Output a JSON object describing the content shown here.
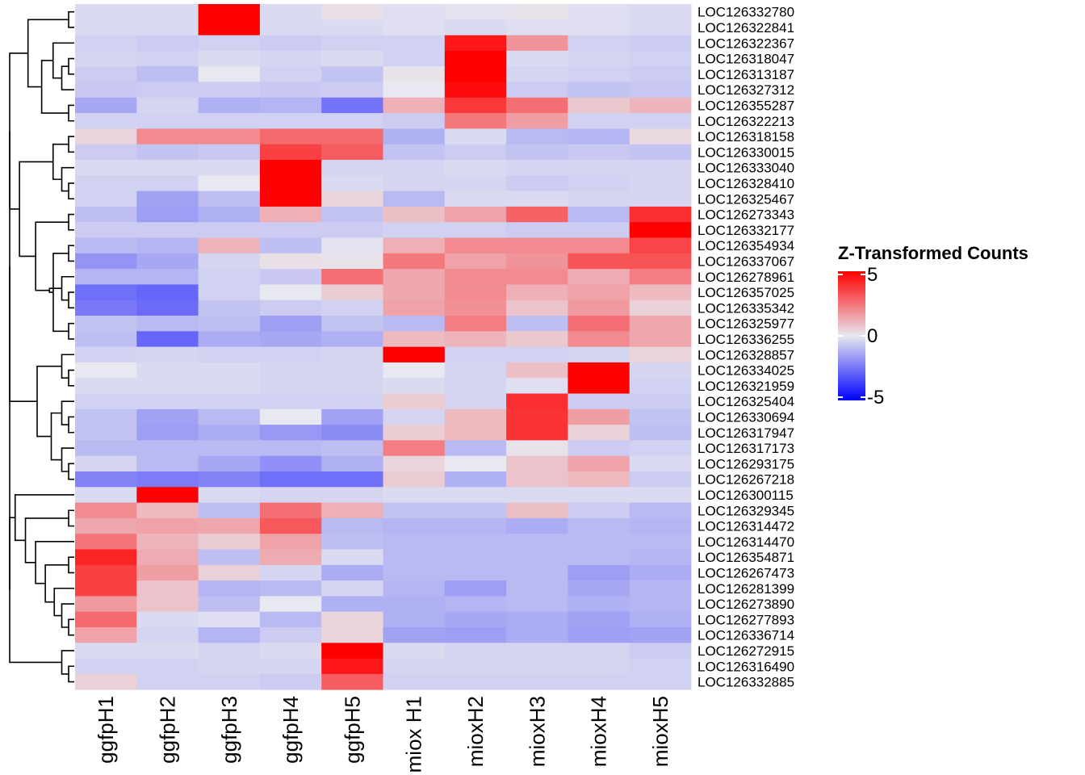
{
  "chart_data": {
    "type": "heatmap",
    "title": "",
    "legend": {
      "title": "Z-Transformed Counts",
      "ticks": [
        "5",
        "0",
        "-5"
      ],
      "tick_values": [
        5,
        0,
        -5
      ],
      "range": [
        -5,
        5
      ],
      "low_color": "#0000ff",
      "mid_color": "#e8e8f0",
      "high_color": "#ff0000",
      "placement": "right"
    },
    "columns": [
      "ggfpH1",
      "ggfpH2",
      "ggfpH3",
      "ggfpH4",
      "ggfpH5",
      "miox H1",
      "mioxH2",
      "mioxH3",
      "mioxH4",
      "mioxH5"
    ],
    "rows": [
      "LOC126332780",
      "LOC126322841",
      "LOC126322367",
      "LOC126318047",
      "LOC126313187",
      "LOC126327312",
      "LOC126355287",
      "LOC126322213",
      "LOC126318158",
      "LOC126330015",
      "LOC126333040",
      "LOC126328410",
      "LOC126325467",
      "LOC126273343",
      "LOC126332177",
      "LOC126354934",
      "LOC126337067",
      "LOC126278961",
      "LOC126357025",
      "LOC126335342",
      "LOC126325977",
      "LOC126336255",
      "LOC126328857",
      "LOC126334025",
      "LOC126321959",
      "LOC126325404",
      "LOC126330694",
      "LOC126317947",
      "LOC126317173",
      "LOC126293175",
      "LOC126267218",
      "LOC126300115",
      "LOC126329345",
      "LOC126314472",
      "LOC126314470",
      "LOC126354871",
      "LOC126267473",
      "LOC126281399",
      "LOC126273890",
      "LOC126277893",
      "LOC126336714",
      "LOC126272915",
      "LOC126316490",
      "LOC126332885"
    ],
    "values": [
      [
        -0.3,
        -0.3,
        5,
        -0.3,
        0.2,
        -0.2,
        -0.1,
        0.1,
        -0.2,
        -0.3
      ],
      [
        -0.3,
        -0.3,
        5,
        -0.3,
        -0.3,
        -0.2,
        -0.3,
        -0.2,
        -0.2,
        -0.3
      ],
      [
        -0.5,
        -0.6,
        -0.5,
        -0.6,
        -0.5,
        -0.5,
        4.5,
        1.8,
        -0.5,
        -0.6
      ],
      [
        -0.4,
        -0.5,
        -0.3,
        -0.4,
        -0.3,
        -0.5,
        5,
        -0.3,
        -0.4,
        -0.5
      ],
      [
        -0.6,
        -0.9,
        0,
        -0.5,
        -0.8,
        0.1,
        5,
        -0.4,
        -0.5,
        -0.6
      ],
      [
        -0.7,
        -0.6,
        -0.6,
        -0.7,
        -0.6,
        0,
        4.8,
        -0.6,
        -0.8,
        -0.7
      ],
      [
        -1.4,
        -0.4,
        -1.2,
        -1.1,
        -2.5,
        1.2,
        3.8,
        2.6,
        0.7,
        1.1
      ],
      [
        -0.5,
        -0.5,
        -0.5,
        -0.5,
        -0.5,
        -0.6,
        2.4,
        1.6,
        -0.5,
        -0.5
      ],
      [
        0.4,
        2.0,
        2.0,
        2.7,
        2.7,
        -1.2,
        -0.3,
        -1.0,
        -1.1,
        0.3
      ],
      [
        -0.6,
        -0.8,
        -0.7,
        3.6,
        3.0,
        -0.8,
        -0.6,
        -0.8,
        -0.7,
        -0.8
      ],
      [
        -0.3,
        -0.3,
        -0.3,
        5,
        -0.4,
        -0.4,
        -0.3,
        -0.4,
        -0.4,
        -0.4
      ],
      [
        -0.5,
        -0.5,
        0,
        5,
        -0.3,
        -0.4,
        -0.4,
        -0.6,
        -0.5,
        -0.4
      ],
      [
        -0.5,
        -1.5,
        -0.9,
        5,
        0.4,
        -1.0,
        -0.3,
        -0.3,
        -0.4,
        -0.4
      ],
      [
        -0.9,
        -1.6,
        -1.2,
        1.2,
        -0.8,
        0.9,
        1.5,
        2.9,
        -1.0,
        4.0
      ],
      [
        -0.6,
        -0.6,
        -0.6,
        -0.6,
        -0.6,
        -0.5,
        -0.5,
        -0.6,
        -0.6,
        5
      ],
      [
        -1.0,
        -1.1,
        1.1,
        -0.9,
        -0.1,
        1.2,
        2.0,
        2.0,
        2.0,
        3.5
      ],
      [
        -1.8,
        -1.4,
        -0.4,
        0.2,
        0.1,
        2.4,
        1.5,
        1.8,
        3.2,
        3.2
      ],
      [
        -1.1,
        -1.1,
        -0.5,
        -0.7,
        2.6,
        1.4,
        2.0,
        2.0,
        1.3,
        2.3
      ],
      [
        -2.6,
        -2.8,
        -0.5,
        0,
        0.6,
        1.4,
        2.0,
        1.2,
        1.5,
        1.0
      ],
      [
        -2.4,
        -2.7,
        -0.8,
        -0.6,
        -0.5,
        1.5,
        1.9,
        0.8,
        1.7,
        0.5
      ],
      [
        -0.8,
        -1.0,
        -0.9,
        -1.6,
        -0.8,
        -1.0,
        2.3,
        -0.9,
        2.6,
        1.4
      ],
      [
        -0.9,
        -2.8,
        -1.3,
        -1.4,
        -1.2,
        1.0,
        1.1,
        0.7,
        2.0,
        1.4
      ],
      [
        -0.5,
        -0.4,
        -0.5,
        -0.5,
        -0.4,
        5,
        -0.5,
        -0.5,
        -0.4,
        0.4
      ],
      [
        0,
        -0.3,
        -0.3,
        -0.4,
        -0.4,
        0,
        -0.4,
        0.9,
        5,
        -0.4
      ],
      [
        -0.3,
        -0.3,
        -0.3,
        -0.4,
        -0.4,
        -0.3,
        -0.4,
        -0.2,
        5,
        -0.5
      ],
      [
        -0.5,
        -0.5,
        -0.5,
        -0.5,
        -0.5,
        0.6,
        -0.4,
        4.0,
        -0.6,
        -0.6
      ],
      [
        -0.8,
        -1.5,
        -1.0,
        0,
        -1.5,
        -0.4,
        1.0,
        3.9,
        1.6,
        -0.8
      ],
      [
        -0.8,
        -1.6,
        -1.3,
        -1.7,
        -2.0,
        0.6,
        1.0,
        3.9,
        0.5,
        -0.9
      ],
      [
        -1.0,
        -1.0,
        -1.0,
        -1.0,
        -0.9,
        2.3,
        -1.0,
        0.1,
        -0.6,
        -0.5
      ],
      [
        -0.4,
        -1.0,
        -1.4,
        -1.9,
        -1.2,
        0.4,
        0,
        0.8,
        1.5,
        -0.3
      ],
      [
        -2.2,
        -2.3,
        -2.2,
        -2.6,
        -2.6,
        0.6,
        -1.2,
        0.8,
        1.0,
        -0.6
      ],
      [
        -0.3,
        5,
        -0.3,
        -0.4,
        -0.4,
        -0.3,
        -0.3,
        -0.3,
        -0.3,
        -0.3
      ],
      [
        2.0,
        1.0,
        -0.9,
        2.6,
        1.2,
        -0.8,
        -0.8,
        0.9,
        -0.6,
        -1.0
      ],
      [
        1.4,
        1.5,
        1.4,
        3.1,
        -1.0,
        -1.1,
        -1.1,
        -1.3,
        -1.0,
        -1.1
      ],
      [
        2.5,
        1.1,
        0.6,
        1.5,
        -0.9,
        -1.0,
        -1.0,
        -1.0,
        -1.0,
        -1.0
      ],
      [
        4.2,
        1.3,
        -0.9,
        1.3,
        -0.3,
        -1.0,
        -1.0,
        -1.0,
        -1.0,
        -1.1
      ],
      [
        3.6,
        1.6,
        0.5,
        -0.4,
        -1.3,
        -1.0,
        -1.0,
        -1.0,
        -1.6,
        -1.3
      ],
      [
        3.6,
        0.8,
        -1.1,
        -1.0,
        -0.4,
        -1.1,
        -1.6,
        -1.0,
        -1.4,
        -1.1
      ],
      [
        1.7,
        0.8,
        -0.9,
        0,
        -1.2,
        -1.2,
        -1.1,
        -1.0,
        -1.2,
        -1.1
      ],
      [
        2.7,
        -0.3,
        -0.2,
        -1.0,
        0.4,
        -1.2,
        -1.4,
        -1.3,
        -1.5,
        -1.2
      ],
      [
        1.5,
        -0.4,
        -1.1,
        -0.6,
        0.4,
        -1.5,
        -1.6,
        -1.3,
        -1.6,
        -1.5
      ],
      [
        -0.3,
        -0.3,
        -0.4,
        -0.3,
        5,
        -0.3,
        -0.4,
        -0.4,
        -0.4,
        -0.6
      ],
      [
        -0.5,
        -0.5,
        -0.4,
        -0.4,
        4.5,
        -0.4,
        -0.4,
        -0.4,
        -0.4,
        -0.5
      ],
      [
        0.5,
        -0.5,
        -0.5,
        -0.6,
        3.0,
        -0.5,
        -0.5,
        -0.5,
        -0.5,
        -0.5
      ]
    ],
    "row_dendrogram": [
      [
        0,
        1
      ],
      [
        3,
        4
      ],
      [
        -2,
        5
      ],
      [
        2,
        -3
      ],
      [
        6,
        7
      ],
      [
        -4,
        -5
      ],
      [
        -1,
        -6
      ],
      [
        8,
        9
      ],
      [
        11,
        12
      ],
      [
        10,
        -9
      ],
      [
        -8,
        -10
      ],
      [
        13,
        14
      ],
      [
        15,
        16
      ],
      [
        18,
        19
      ],
      [
        20,
        21
      ],
      [
        17,
        -14
      ],
      [
        -15,
        -13
      ],
      [
        -17,
        -16
      ],
      [
        -12,
        -18
      ],
      [
        -11,
        -19
      ],
      [
        -7,
        -20
      ],
      [
        23,
        24
      ],
      [
        22,
        -22
      ],
      [
        26,
        27
      ],
      [
        25,
        -24
      ],
      [
        29,
        30
      ],
      [
        28,
        -26
      ],
      [
        -25,
        -27
      ],
      [
        -23,
        -28
      ],
      [
        -21,
        -29
      ],
      [
        32,
        33
      ],
      [
        35,
        36
      ],
      [
        39,
        40
      ],
      [
        38,
        -33
      ],
      [
        37,
        -34
      ],
      [
        -32,
        -35
      ],
      [
        34,
        -36
      ],
      [
        -31,
        -37
      ],
      [
        31,
        -38
      ],
      [
        42,
        43
      ],
      [
        41,
        -40
      ],
      [
        -39,
        -41
      ],
      [
        -30,
        -42
      ]
    ]
  }
}
